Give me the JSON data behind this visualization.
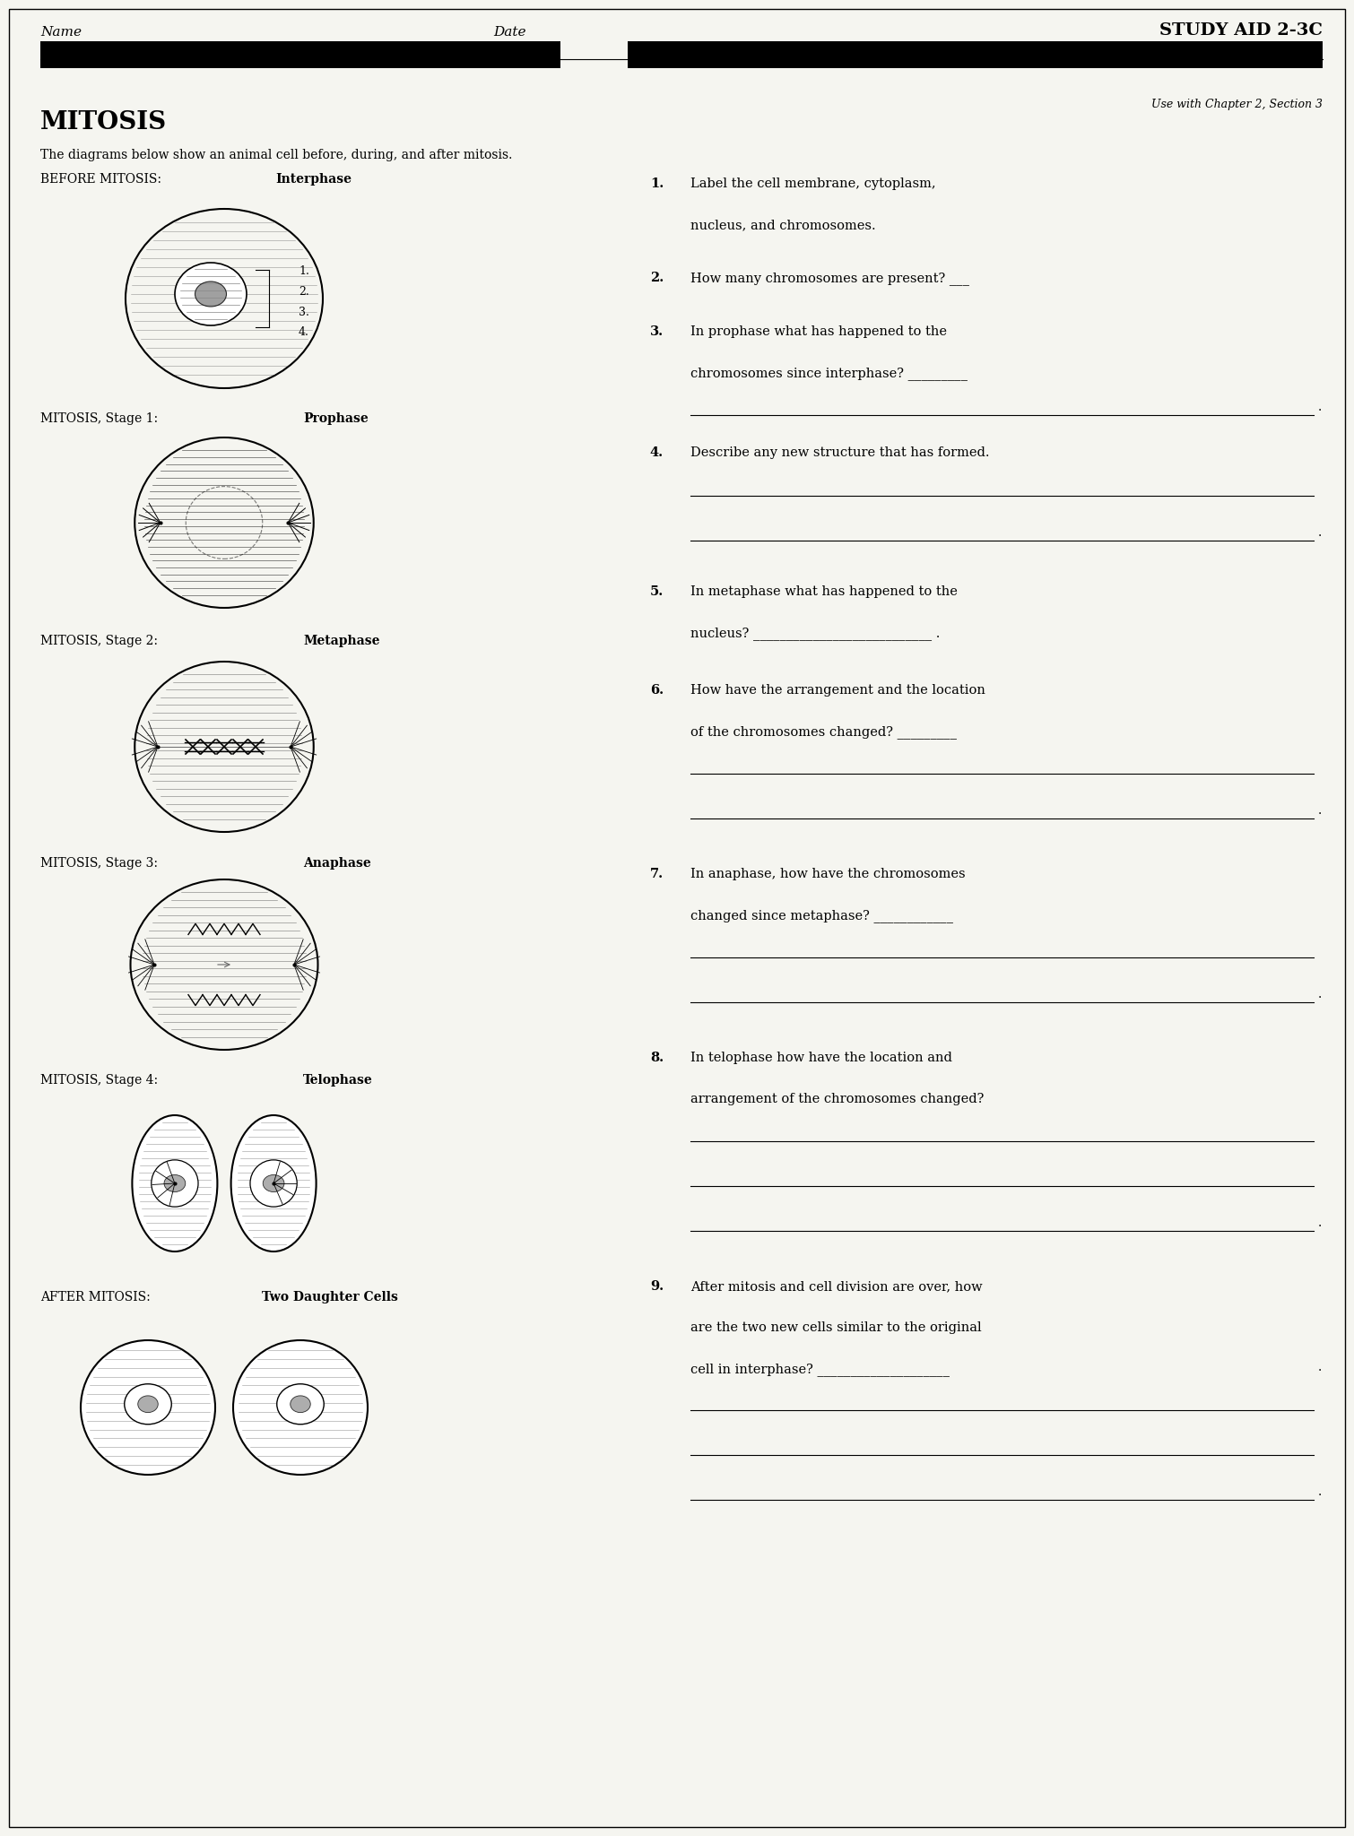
{
  "bg_color": "#f5f5f0",
  "title_name": "Name",
  "title_date": "Date",
  "title_study": "STUDY AID 2-3C",
  "use_with": "Use with Chapter 2, Section 3",
  "main_title": "MITOSIS",
  "intro_text": "The diagrams below show an animal cell before, during, and after mitosis.",
  "left_labels": [
    "BEFORE MITOSIS: Interphase",
    "MITOSIS, Stage 1: Prophase",
    "MITOSIS, Stage 2: Metaphase",
    "MITOSIS, Stage 3: Anaphase",
    "MITOSIS, Stage 4: Telophase",
    "AFTER MITOSIS: Two Daughter Cells"
  ],
  "left_bold_parts": [
    "Interphase",
    "Prophase",
    "Metaphase",
    "Anaphase",
    "Telophase",
    "Two Daughter Cells"
  ],
  "right_questions": [
    {
      "num": "1.",
      "text": "Label the cell membrane, cytoplasm,\nnucleus, and chromosomes."
    },
    {
      "num": "2.",
      "text": "How many chromosomes are present? ___"
    },
    {
      "num": "3.",
      "text": "In prophase what has happened to the\nchromosomes since interphase? _________"
    },
    {
      "num": "4.",
      "text": "Describe any new structure that has formed."
    },
    {
      "num": "5.",
      "text": "In metaphase what has happened to the\nnucleus? ___________________________ ."
    },
    {
      "num": "6.",
      "text": "How have the arrangement and the location\nof the chromosomes changed? _________"
    },
    {
      "num": "7.",
      "text": "In anaphase, how have the chromosomes\nchanged since metaphase? ____________"
    },
    {
      "num": "8.",
      "text": "In telophase how have the location and\narrangement of the chromosomes changed?"
    },
    {
      "num": "9.",
      "text": "After mitosis and cell division are over, how\nare the two new cells similar to the original\ncell in interphase? ____________________"
    }
  ],
  "answer_lines_after": {
    "3": 1,
    "4": 2,
    "6": 2,
    "7": 2,
    "8": 3,
    "9": 2
  },
  "interphase_labels": [
    "1.",
    "2.",
    "3.",
    "4."
  ]
}
